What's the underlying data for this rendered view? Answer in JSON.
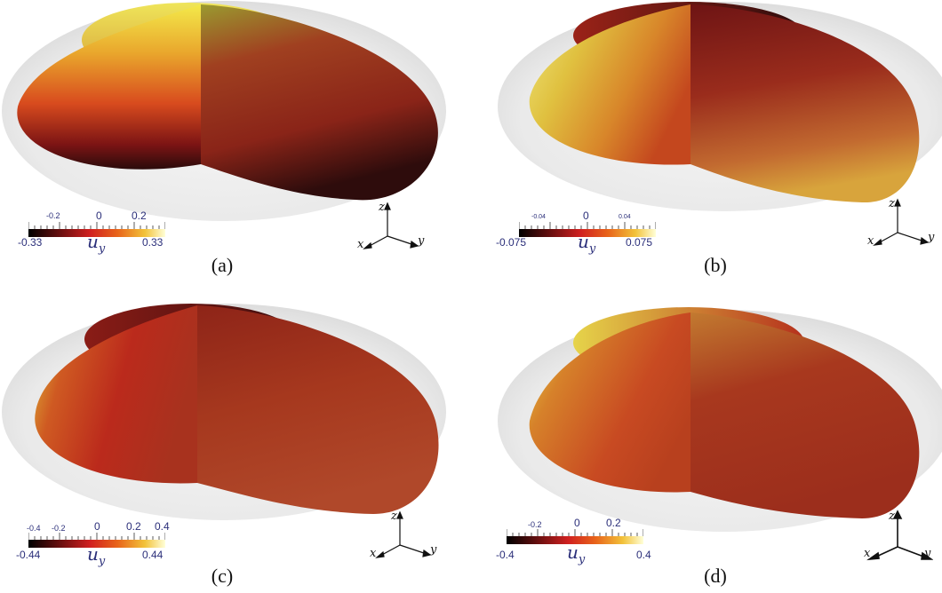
{
  "panels": [
    {
      "caption": "(a)",
      "colorbar": {
        "variable": "u",
        "subscript": "y",
        "min_label": "-0.33",
        "max_label": "0.33",
        "tick_labels": [
          "-0.2",
          "0",
          "0.2"
        ]
      },
      "axes": {
        "x": "x",
        "y": "y",
        "z": "z"
      }
    },
    {
      "caption": "(b)",
      "colorbar": {
        "variable": "u",
        "subscript": "y",
        "min_label": "-0.075",
        "max_label": "0.075",
        "tick_labels": [
          "-0.04",
          "0",
          "0.04"
        ]
      },
      "axes": {
        "x": "x",
        "y": "y",
        "z": "z"
      }
    },
    {
      "caption": "(c)",
      "colorbar": {
        "variable": "u",
        "subscript": "y",
        "min_label": "-0.44",
        "max_label": "0.44",
        "tick_labels": [
          "-0.4",
          "-0.2",
          "0",
          "0.2",
          "0.4"
        ]
      },
      "axes": {
        "x": "x",
        "y": "y",
        "z": "z"
      }
    },
    {
      "caption": "(d)",
      "colorbar": {
        "variable": "u",
        "subscript": "y",
        "min_label": "-0.4",
        "max_label": "0.4",
        "tick_labels": [
          "-0.2",
          "0",
          "0.2"
        ]
      },
      "axes": {
        "x": "x",
        "y": "y",
        "z": "z"
      }
    }
  ],
  "colormap": [
    "#000000",
    "#5a0d0d",
    "#c81e1e",
    "#e8521a",
    "#f2a81e",
    "#f3f06a",
    "#ffffe0"
  ]
}
